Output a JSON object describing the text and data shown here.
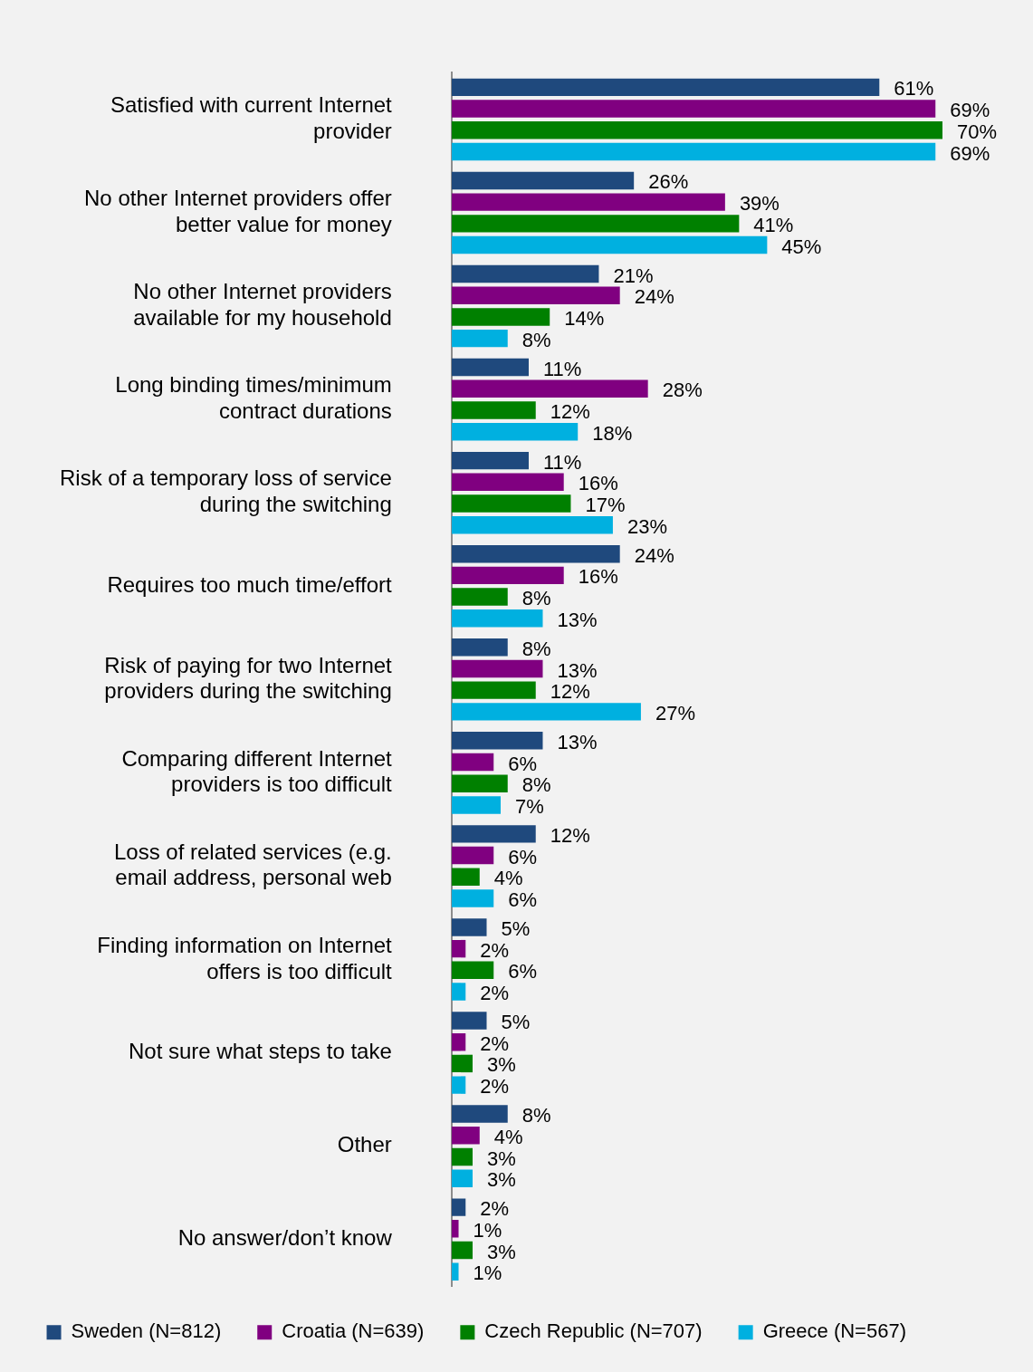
{
  "chart_data": {
    "type": "bar",
    "orientation": "horizontal",
    "tick_labels": "y",
    "grid": false,
    "legend": "bottom",
    "categories": [
      "Satisfied with current Internet provider",
      "No other Internet providers offer better value for money",
      "No other Internet providers available for my household",
      "Long binding times/minimum contract durations",
      "Risk of a temporary loss of service during the switching",
      "Requires too much time/effort",
      "Risk of paying for two Internet providers during the switching",
      "Comparing different Internet providers is too difficult",
      "Loss of related services (e.g. email address, personal web",
      "Finding information on Internet offers is too difficult",
      "Not sure what steps to take",
      "Other",
      "No answer/don’t know"
    ],
    "series": [
      {
        "name": "Sweden (N=812)",
        "color": "#1f497d",
        "values": [
          61,
          26,
          21,
          11,
          11,
          24,
          8,
          13,
          12,
          5,
          5,
          8,
          2
        ],
        "value_labels": [
          "61%",
          "26%",
          "21%",
          "11%",
          "11%",
          "24%",
          "8%",
          "13%",
          "12%",
          "5%",
          "5%",
          "8%",
          "2%"
        ]
      },
      {
        "name": "Croatia (N=639)",
        "color": "#800080",
        "values": [
          69,
          39,
          24,
          28,
          16,
          16,
          13,
          6,
          6,
          2,
          2,
          4,
          1
        ],
        "value_labels": [
          "69%",
          "39%",
          "24%",
          "28%",
          "16%",
          "16%",
          "13%",
          "6%",
          "6%",
          "2%",
          "2%",
          "4%",
          "1%"
        ]
      },
      {
        "name": "Czech Republic (N=707)",
        "color": "#008000",
        "values": [
          70,
          41,
          14,
          12,
          17,
          8,
          12,
          8,
          4,
          6,
          3,
          3,
          3
        ],
        "value_labels": [
          "70%",
          "41%",
          "14%",
          "12%",
          "17%",
          "8%",
          "12%",
          "8%",
          "4%",
          "6%",
          "3%",
          "3%",
          "3%"
        ]
      },
      {
        "name": "Greece (N=567)",
        "color": "#00b0e0",
        "values": [
          69,
          45,
          8,
          18,
          23,
          13,
          27,
          7,
          6,
          2,
          2,
          3,
          1
        ],
        "value_labels": [
          "69%",
          "45%",
          "8%",
          "18%",
          "23%",
          "13%",
          "27%",
          "7%",
          "6%",
          "2%",
          "2%",
          "3%",
          "1%"
        ]
      }
    ]
  }
}
